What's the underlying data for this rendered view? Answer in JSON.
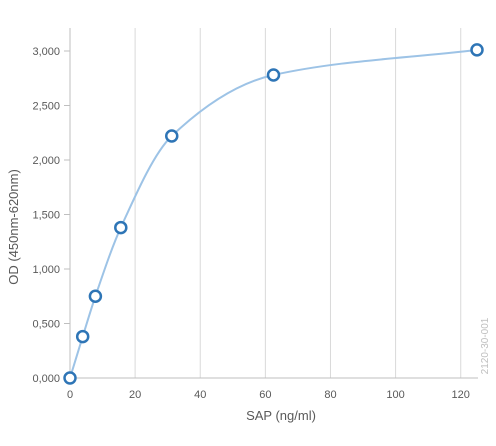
{
  "chart_data": {
    "type": "scatter",
    "title": "",
    "xlabel": "SAP (ng/ml)",
    "ylabel": "OD (450nm-620nm)",
    "xlim": [
      0,
      125
    ],
    "ylim": [
      0,
      3000
    ],
    "xticks": [
      0,
      20,
      40,
      60,
      80,
      100,
      120
    ],
    "yticks": [
      0,
      500,
      1000,
      1500,
      2000,
      2500,
      3000
    ],
    "xtick_labels": [
      "0",
      "20",
      "40",
      "60",
      "80",
      "100",
      "120"
    ],
    "ytick_labels": [
      "0,000",
      "0,500",
      "1,000",
      "1,500",
      "2,000",
      "2,500",
      "3,000"
    ],
    "grid": {
      "vertical": true,
      "horizontal": false
    },
    "series": [
      {
        "x": [
          0,
          3.9,
          7.8,
          15.6,
          31.25,
          62.5,
          125
        ],
        "y": [
          0,
          380,
          750,
          1380,
          2220,
          2780,
          3010
        ],
        "style": "markers"
      }
    ],
    "fit_curve": true,
    "colors": {
      "marker_edge": "#2e75b6",
      "marker_fill": "#ffffff",
      "curve": "#9dc3e6",
      "grid": "#d9d9d9",
      "text": "#595959"
    }
  },
  "watermark": "2120-30-001"
}
